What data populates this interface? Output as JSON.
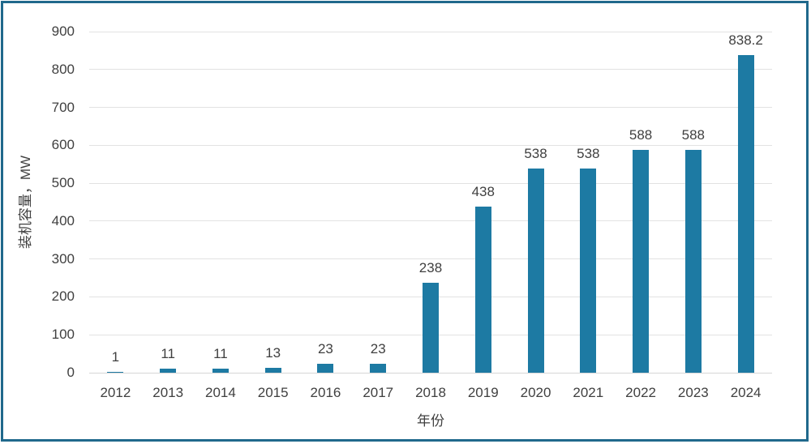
{
  "chart": {
    "y_axis_title": "装机容量，MW",
    "x_axis_title": "年份",
    "colors": {
      "bar": "#1d7aa3",
      "grid": "#e2e2e2",
      "baseline": "#d6d6d6",
      "frame_border": "#20698c",
      "text": "#404040",
      "background": "#ffffff"
    }
  },
  "chart_data": {
    "type": "bar",
    "title": "",
    "xlabel": "年份",
    "ylabel": "装机容量，MW",
    "categories": [
      "2012",
      "2013",
      "2014",
      "2015",
      "2016",
      "2017",
      "2018",
      "2019",
      "2020",
      "2021",
      "2022",
      "2023",
      "2024"
    ],
    "values": [
      1,
      11,
      11,
      13,
      23,
      23,
      238,
      438,
      538,
      538,
      588,
      588,
      838.2
    ],
    "value_labels": [
      "1",
      "11",
      "11",
      "13",
      "23",
      "23",
      "238",
      "438",
      "538",
      "538",
      "588",
      "588",
      "838.2"
    ],
    "y_ticks": [
      0,
      100,
      200,
      300,
      400,
      500,
      600,
      700,
      800,
      900
    ],
    "ylim": [
      0,
      900
    ],
    "grid": true,
    "legend": false,
    "data_labels": true
  }
}
